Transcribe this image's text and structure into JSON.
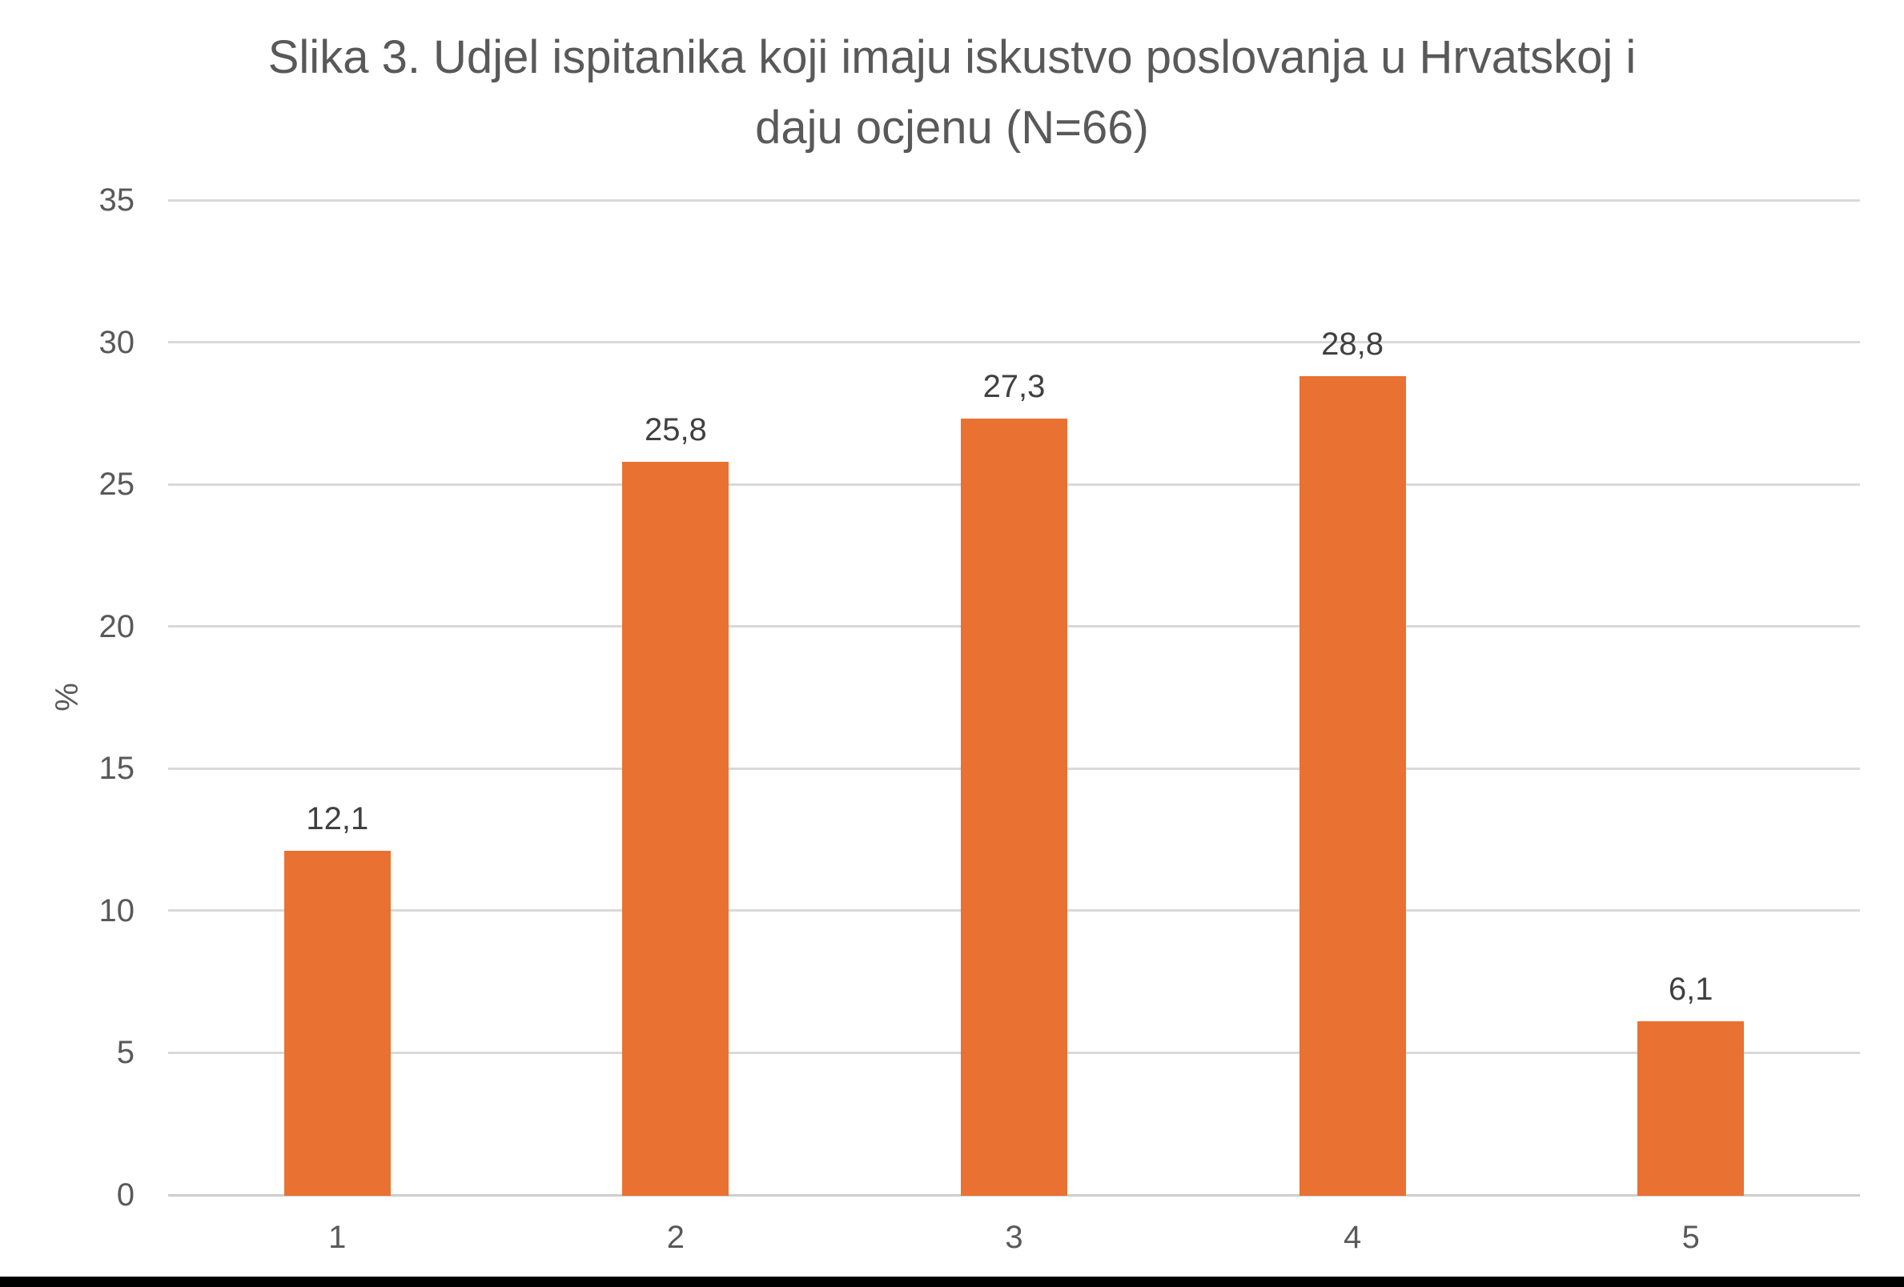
{
  "chart_data": {
    "type": "bar",
    "title": "Slika 3. Udjel ispitanika koji imaju iskustvo poslovanja u Hrvatskoj i daju ocjenu (N=66)",
    "title_lines": [
      "Slika 3. Udjel ispitanika koji imaju iskustvo poslovanja u Hrvatskoj i",
      "daju ocjenu (N=66)"
    ],
    "categories": [
      "1",
      "2",
      "3",
      "4",
      "5"
    ],
    "values": [
      12.1,
      25.8,
      27.3,
      28.8,
      6.1
    ],
    "value_labels": [
      "12,1",
      "25,8",
      "27,3",
      "28,8",
      "6,1"
    ],
    "xlabel": "",
    "ylabel": "%",
    "ylim": [
      0,
      35
    ],
    "ytick_step": 5,
    "ytick_labels": [
      "0",
      "5",
      "10",
      "15",
      "20",
      "25",
      "30",
      "35"
    ],
    "grid": "horizontal",
    "legend": "none",
    "colors": {
      "bar": "#E97132",
      "gridline": "#D9D9D9",
      "axis_line": "#CFCDCD",
      "title_text": "#595959",
      "tick_text": "#595959",
      "data_label_text": "#404040"
    }
  }
}
